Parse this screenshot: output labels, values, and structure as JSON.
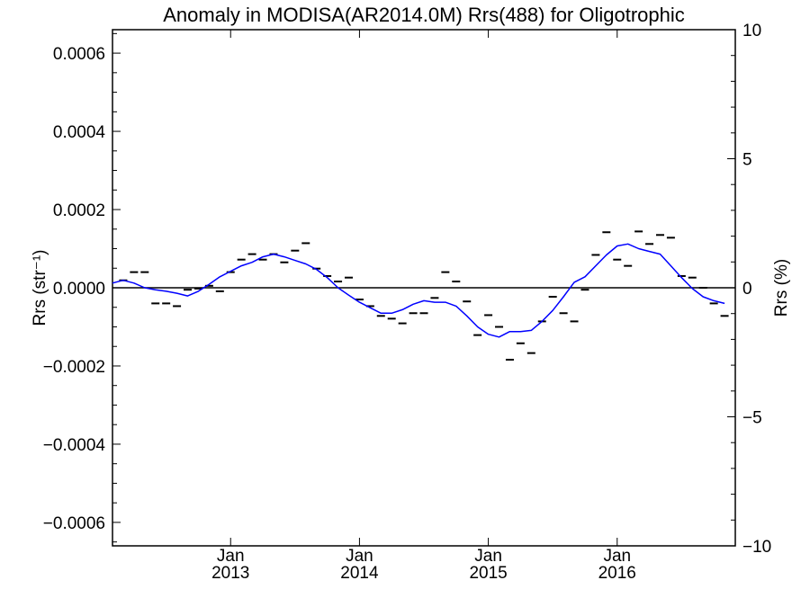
{
  "chart_data": {
    "type": "line",
    "title": "Anomaly in MODISA(AR2014.0M) Rrs(488) for Oligotrophic",
    "ylabel_left": "Rrs (str⁻¹)",
    "ylabel_right": "Rrs (%)",
    "x_range": [
      "2012-02",
      "2016-12"
    ],
    "ylim_left": [
      -0.00066,
      0.00066
    ],
    "ylim_right": [
      -10,
      10
    ],
    "x_ticks": [
      {
        "date": "2013-01",
        "label_month": "Jan",
        "label_year": "2013"
      },
      {
        "date": "2014-01",
        "label_month": "Jan",
        "label_year": "2014"
      },
      {
        "date": "2015-01",
        "label_month": "Jan",
        "label_year": "2015"
      },
      {
        "date": "2016-01",
        "label_month": "Jan",
        "label_year": "2016"
      }
    ],
    "y_ticks_left": [
      {
        "value": 0.0006,
        "label": "0.0006"
      },
      {
        "value": 0.0004,
        "label": "0.0004"
      },
      {
        "value": 0.0002,
        "label": "0.0002"
      },
      {
        "value": 0,
        "label": "0.0000"
      },
      {
        "value": -0.0002,
        "label": "−0.0002"
      },
      {
        "value": -0.0004,
        "label": "−0.0004"
      },
      {
        "value": -0.0006,
        "label": "−0.0006"
      }
    ],
    "y_ticks_right": [
      {
        "value": 10,
        "label": "10"
      },
      {
        "value": 5,
        "label": "5"
      },
      {
        "value": 0,
        "label": "0"
      },
      {
        "value": -5,
        "label": "−5"
      },
      {
        "value": -10,
        "label": "−10"
      }
    ],
    "series": [
      {
        "kind": "monthly-markers",
        "color": "#000000",
        "points": [
          {
            "x": "2012-03",
            "y": 1.9e-05
          },
          {
            "x": "2012-04",
            "y": 4e-05
          },
          {
            "x": "2012-05",
            "y": 4e-05
          },
          {
            "x": "2012-06",
            "y": -4e-05
          },
          {
            "x": "2012-07",
            "y": -4e-05
          },
          {
            "x": "2012-08",
            "y": -4.7e-05
          },
          {
            "x": "2012-09",
            "y": -5e-06
          },
          {
            "x": "2012-10",
            "y": -2e-06
          },
          {
            "x": "2012-11",
            "y": 5e-06
          },
          {
            "x": "2012-12",
            "y": -9e-06
          },
          {
            "x": "2013-01",
            "y": 4e-05
          },
          {
            "x": "2013-02",
            "y": 7.2e-05
          },
          {
            "x": "2013-03",
            "y": 8.6e-05
          },
          {
            "x": "2013-04",
            "y": 7.2e-05
          },
          {
            "x": "2013-05",
            "y": 8.6e-05
          },
          {
            "x": "2013-06",
            "y": 6.5e-05
          },
          {
            "x": "2013-07",
            "y": 9.5e-05
          },
          {
            "x": "2013-08",
            "y": 0.000114
          },
          {
            "x": "2013-09",
            "y": 4.9e-05
          },
          {
            "x": "2013-10",
            "y": 3e-05
          },
          {
            "x": "2013-11",
            "y": 1.6e-05
          },
          {
            "x": "2013-12",
            "y": 2.6e-05
          },
          {
            "x": "2014-01",
            "y": -3e-05
          },
          {
            "x": "2014-02",
            "y": -4.7e-05
          },
          {
            "x": "2014-03",
            "y": -7.2e-05
          },
          {
            "x": "2014-04",
            "y": -7.9e-05
          },
          {
            "x": "2014-05",
            "y": -9.1e-05
          },
          {
            "x": "2014-06",
            "y": -6.5e-05
          },
          {
            "x": "2014-07",
            "y": -6.5e-05
          },
          {
            "x": "2014-08",
            "y": -2.6e-05
          },
          {
            "x": "2014-09",
            "y": 4e-05
          },
          {
            "x": "2014-10",
            "y": 1.6e-05
          },
          {
            "x": "2014-11",
            "y": -3.5e-05
          },
          {
            "x": "2014-12",
            "y": -0.000121
          },
          {
            "x": "2015-01",
            "y": -7e-05
          },
          {
            "x": "2015-02",
            "y": -0.0001
          },
          {
            "x": "2015-03",
            "y": -0.000184
          },
          {
            "x": "2015-04",
            "y": -0.000142
          },
          {
            "x": "2015-05",
            "y": -0.000167
          },
          {
            "x": "2015-06",
            "y": -8.6e-05
          },
          {
            "x": "2015-07",
            "y": -2.3e-05
          },
          {
            "x": "2015-08",
            "y": -6.5e-05
          },
          {
            "x": "2015-09",
            "y": -8.6e-05
          },
          {
            "x": "2015-10",
            "y": -5e-06
          },
          {
            "x": "2015-11",
            "y": 8.4e-05
          },
          {
            "x": "2015-12",
            "y": 0.000142
          },
          {
            "x": "2016-01",
            "y": 7.2e-05
          },
          {
            "x": "2016-02",
            "y": 5.6e-05
          },
          {
            "x": "2016-03",
            "y": 0.000144
          },
          {
            "x": "2016-04",
            "y": 0.000112
          },
          {
            "x": "2016-05",
            "y": 0.000135
          },
          {
            "x": "2016-06",
            "y": 0.000128
          },
          {
            "x": "2016-07",
            "y": 3e-05
          },
          {
            "x": "2016-08",
            "y": 2.6e-05
          },
          {
            "x": "2016-09",
            "y": 0.0
          },
          {
            "x": "2016-10",
            "y": -4e-05
          },
          {
            "x": "2016-11",
            "y": -7.2e-05
          }
        ]
      },
      {
        "kind": "smoothed-line",
        "color": "#0000ff",
        "points": [
          {
            "x": "2012-02",
            "y": 1.2e-05
          },
          {
            "x": "2012-03",
            "y": 1.9e-05
          },
          {
            "x": "2012-04",
            "y": 1.2e-05
          },
          {
            "x": "2012-05",
            "y": 0.0
          },
          {
            "x": "2012-06",
            "y": -5e-06
          },
          {
            "x": "2012-07",
            "y": -9e-06
          },
          {
            "x": "2012-08",
            "y": -1.4e-05
          },
          {
            "x": "2012-09",
            "y": -2.1e-05
          },
          {
            "x": "2012-10",
            "y": -9e-06
          },
          {
            "x": "2012-11",
            "y": 9e-06
          },
          {
            "x": "2012-12",
            "y": 2.8e-05
          },
          {
            "x": "2013-01",
            "y": 4.2e-05
          },
          {
            "x": "2013-02",
            "y": 5.6e-05
          },
          {
            "x": "2013-03",
            "y": 6.5e-05
          },
          {
            "x": "2013-04",
            "y": 7.9e-05
          },
          {
            "x": "2013-05",
            "y": 8.6e-05
          },
          {
            "x": "2013-06",
            "y": 7.9e-05
          },
          {
            "x": "2013-07",
            "y": 7e-05
          },
          {
            "x": "2013-08",
            "y": 6.1e-05
          },
          {
            "x": "2013-09",
            "y": 4.7e-05
          },
          {
            "x": "2013-10",
            "y": 2.6e-05
          },
          {
            "x": "2013-11",
            "y": 0.0
          },
          {
            "x": "2013-12",
            "y": -1.9e-05
          },
          {
            "x": "2014-01",
            "y": -3.7e-05
          },
          {
            "x": "2014-02",
            "y": -5.1e-05
          },
          {
            "x": "2014-03",
            "y": -6.5e-05
          },
          {
            "x": "2014-04",
            "y": -6.5e-05
          },
          {
            "x": "2014-05",
            "y": -5.6e-05
          },
          {
            "x": "2014-06",
            "y": -4.2e-05
          },
          {
            "x": "2014-07",
            "y": -3.3e-05
          },
          {
            "x": "2014-08",
            "y": -3.7e-05
          },
          {
            "x": "2014-09",
            "y": -3.7e-05
          },
          {
            "x": "2014-10",
            "y": -4.7e-05
          },
          {
            "x": "2014-11",
            "y": -7.2e-05
          },
          {
            "x": "2014-12",
            "y": -0.0001
          },
          {
            "x": "2015-01",
            "y": -0.000119
          },
          {
            "x": "2015-02",
            "y": -0.000126
          },
          {
            "x": "2015-03",
            "y": -0.000112
          },
          {
            "x": "2015-04",
            "y": -0.000112
          },
          {
            "x": "2015-05",
            "y": -0.000109
          },
          {
            "x": "2015-06",
            "y": -8.6e-05
          },
          {
            "x": "2015-07",
            "y": -5.8e-05
          },
          {
            "x": "2015-08",
            "y": -2.3e-05
          },
          {
            "x": "2015-09",
            "y": 1.4e-05
          },
          {
            "x": "2015-10",
            "y": 2.8e-05
          },
          {
            "x": "2015-11",
            "y": 5.6e-05
          },
          {
            "x": "2015-12",
            "y": 8.4e-05
          },
          {
            "x": "2016-01",
            "y": 0.000107
          },
          {
            "x": "2016-02",
            "y": 0.000112
          },
          {
            "x": "2016-03",
            "y": 0.0001
          },
          {
            "x": "2016-04",
            "y": 9.3e-05
          },
          {
            "x": "2016-05",
            "y": 8.6e-05
          },
          {
            "x": "2016-06",
            "y": 5.6e-05
          },
          {
            "x": "2016-07",
            "y": 2.6e-05
          },
          {
            "x": "2016-08",
            "y": -2e-06
          },
          {
            "x": "2016-09",
            "y": -2.3e-05
          },
          {
            "x": "2016-10",
            "y": -3.3e-05
          },
          {
            "x": "2016-11",
            "y": -4e-05
          }
        ]
      }
    ]
  }
}
